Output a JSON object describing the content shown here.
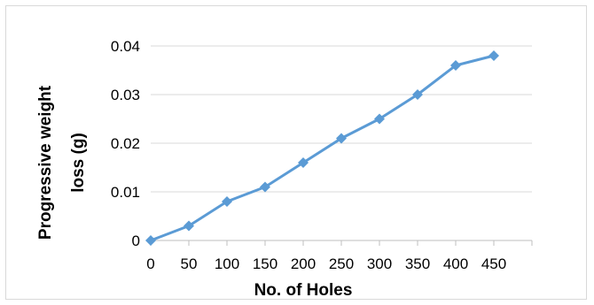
{
  "chart_data": {
    "type": "line",
    "title": "",
    "xlabel": "No. of Holes",
    "ylabel_lines": [
      "Progressive weight",
      "loss  (g)"
    ],
    "categories": [
      "0",
      "50",
      "100",
      "150",
      "200",
      "250",
      "300",
      "350",
      "400",
      "450"
    ],
    "series": [
      {
        "values": [
          0,
          0.003,
          0.008,
          0.011,
          0.016,
          0.021,
          0.025,
          0.03,
          0.036,
          0.038
        ]
      }
    ],
    "ylim": [
      0,
      0.04
    ],
    "yticks": [
      "0",
      "0.01",
      "0.02",
      "0.03",
      "0.04"
    ],
    "grid": true,
    "legend": "none",
    "colors": {
      "line": "#5b9bd5",
      "grid": "#d9d9d9",
      "axis": "#bfbfbf"
    }
  }
}
